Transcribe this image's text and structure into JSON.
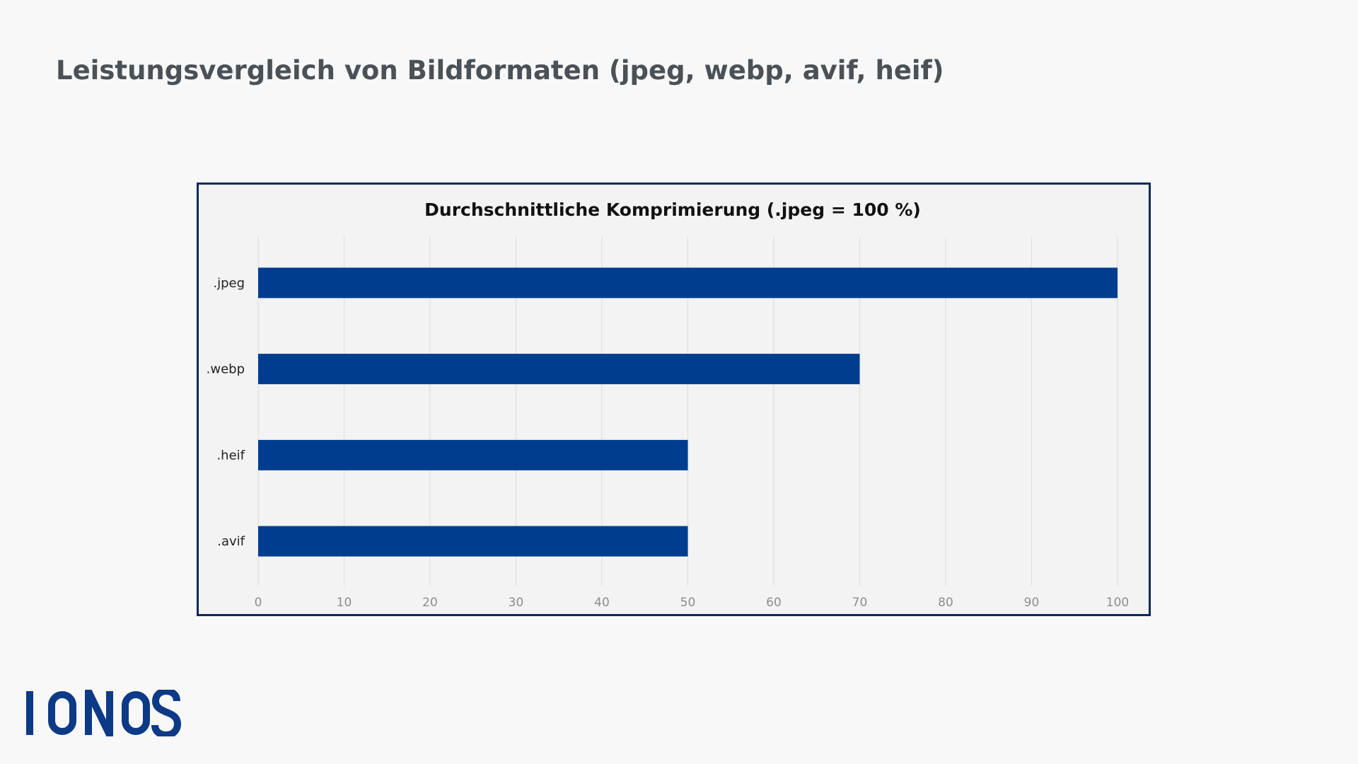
{
  "page": {
    "title": "Leistungsvergleich von Bildformaten (jpeg, webp, avif, heif)"
  },
  "logo": {
    "text": "IONOS",
    "color": "#0d3a86"
  },
  "chart_data": {
    "type": "bar",
    "orientation": "horizontal",
    "title": "Durchschnittliche Komprimierung (.jpeg = 100 %)",
    "categories": [
      ".jpeg",
      ".webp",
      ".heif",
      ".avif"
    ],
    "values": [
      100,
      70,
      50,
      50
    ],
    "xlim": [
      0,
      100
    ],
    "xticks": [
      0,
      10,
      20,
      30,
      40,
      50,
      60,
      70,
      80,
      90,
      100
    ],
    "grid": "vertical",
    "bar_color": "#003d8f",
    "background_color": "#f3f3f3",
    "border_color": "#0b2a5c"
  }
}
